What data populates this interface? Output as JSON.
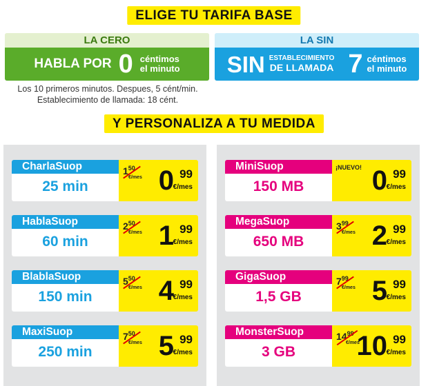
{
  "title_base": "ELIGE TU TARIFA BASE",
  "title_custom": "Y PERSONALIZA A TU MEDIDA",
  "plan_cero": {
    "name": "LA CERO",
    "text_big": "HABLA POR",
    "number": "0",
    "unit_line1": "céntimos",
    "unit_line2": "el minuto"
  },
  "plan_sin": {
    "name": "LA SIN",
    "text_big": "SIN",
    "small_line1": "ESTABLECIMIENTO",
    "small_line2": "DE LLAMADA",
    "number": "7",
    "unit_line1": "céntimos",
    "unit_line2": "el minuto"
  },
  "notes": {
    "line1": "Los 10 primeros minutos. Despues, 5 cént/min.",
    "line2": "Establecimiento de llamada: 18 cént."
  },
  "voice": [
    {
      "name": "CharlaSuop",
      "value": "25 min",
      "old_int": "1",
      "old_dec": "50",
      "old_unit": "€/mes",
      "new_int": "0",
      "new_dec": "99",
      "new_unit": "€/mes"
    },
    {
      "name": "HablaSuop",
      "value": "60 min",
      "old_int": "2",
      "old_dec": "50",
      "old_unit": "€/mes",
      "new_int": "1",
      "new_dec": "99",
      "new_unit": "€/mes"
    },
    {
      "name": "BlablaSuop",
      "value": "150 min",
      "old_int": "5",
      "old_dec": "50",
      "old_unit": "€/mes",
      "new_int": "4",
      "new_dec": "99",
      "new_unit": "€/mes"
    },
    {
      "name": "MaxiSuop",
      "value": "250 min",
      "old_int": "7",
      "old_dec": "50",
      "old_unit": "€/mes",
      "new_int": "5",
      "new_dec": "99",
      "new_unit": "€/mes"
    }
  ],
  "data": [
    {
      "name": "MiniSuop",
      "value": "150 MB",
      "tag": "¡NUEVO!",
      "new_int": "0",
      "new_dec": "99",
      "new_unit": "€/mes"
    },
    {
      "name": "MegaSuop",
      "value": "650 MB",
      "old_int": "3",
      "old_dec": "99",
      "old_unit": "€/mes",
      "new_int": "2",
      "new_dec": "99",
      "new_unit": "€/mes"
    },
    {
      "name": "GigaSuop",
      "value": "1,5 GB",
      "old_int": "7",
      "old_dec": "99",
      "old_unit": "€/mes",
      "new_int": "5",
      "new_dec": "99",
      "new_unit": "€/mes"
    },
    {
      "name": "MonsterSuop",
      "value": "3 GB",
      "old_int": "14",
      "old_dec": "99",
      "old_unit": "€/mes",
      "new_int": "10",
      "new_dec": "99",
      "new_unit": "€/mes"
    }
  ],
  "colors": {
    "yellow": "#ffec00",
    "green": "#5aac2a",
    "blue": "#1aa1df",
    "pink": "#e5007d",
    "strike": "#e00000"
  }
}
